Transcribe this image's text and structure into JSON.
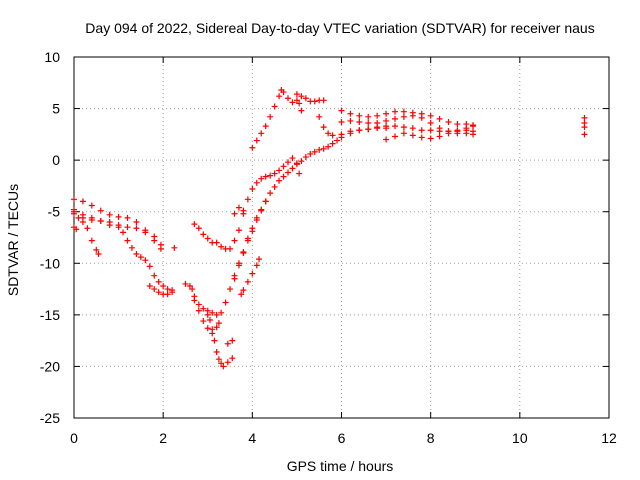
{
  "chart_data": {
    "type": "scatter",
    "title": "Day 094 of 2022, Sidereal Day-to-day VTEC variation (SDTVAR) for receiver naus",
    "xlabel": "GPS time / hours",
    "ylabel": "SDTVAR / TECUs",
    "xlim": [
      0,
      12
    ],
    "ylim": [
      -25,
      10
    ],
    "xticks": [
      0,
      2,
      4,
      6,
      8,
      10,
      12
    ],
    "yticks": [
      -25,
      -20,
      -15,
      -10,
      -5,
      0,
      5,
      10
    ],
    "xtick_labels": [
      "0",
      "2",
      "4",
      "6",
      "8",
      "10",
      "12"
    ],
    "ytick_labels": [
      "-25",
      "-20",
      "-15",
      "-10",
      "-5",
      "0",
      "5",
      "10"
    ],
    "grid": true,
    "marker": "+",
    "color": "#ff0000",
    "series": [
      {
        "points": [
          [
            0.0,
            -5.0
          ],
          [
            0.1,
            -5.6
          ],
          [
            0.2,
            -6.0
          ],
          [
            0.3,
            -6.6
          ],
          [
            0.4,
            -7.8
          ],
          [
            0.5,
            -8.7
          ],
          [
            0.55,
            -9.1
          ],
          [
            0.0,
            -6.5
          ],
          [
            0.05,
            -6.7
          ],
          [
            0.0,
            -4.8
          ],
          [
            0.2,
            -5.3
          ],
          [
            0.4,
            -5.6
          ],
          [
            0.6,
            -5.9
          ],
          [
            0.8,
            -6.3
          ],
          [
            1.0,
            -6.5
          ],
          [
            1.2,
            -6.5
          ],
          [
            1.4,
            -6.6
          ],
          [
            1.6,
            -7.0
          ],
          [
            1.8,
            -7.8
          ],
          [
            1.95,
            -8.6
          ],
          [
            0.0,
            -5.2
          ],
          [
            0.2,
            -5.6
          ],
          [
            0.4,
            -5.8
          ],
          [
            0.6,
            -5.9
          ],
          [
            0.8,
            -6.0
          ],
          [
            1.0,
            -6.3
          ],
          [
            1.1,
            -7.0
          ],
          [
            1.2,
            -7.8
          ],
          [
            1.3,
            -8.5
          ],
          [
            1.4,
            -9.1
          ],
          [
            1.5,
            -9.4
          ],
          [
            1.6,
            -9.7
          ],
          [
            1.7,
            -10.3
          ],
          [
            1.8,
            -11.2
          ],
          [
            1.9,
            -11.8
          ],
          [
            2.0,
            -12.2
          ],
          [
            2.1,
            -12.5
          ],
          [
            2.2,
            -12.6
          ],
          [
            1.7,
            -12.2
          ],
          [
            1.8,
            -12.5
          ],
          [
            1.9,
            -12.8
          ],
          [
            2.0,
            -13.0
          ],
          [
            2.1,
            -13.0
          ],
          [
            2.2,
            -12.8
          ],
          [
            0.0,
            -3.8
          ],
          [
            0.2,
            -4.0
          ],
          [
            0.4,
            -4.4
          ],
          [
            0.6,
            -4.9
          ],
          [
            0.8,
            -5.3
          ],
          [
            1.0,
            -5.5
          ],
          [
            1.2,
            -5.6
          ],
          [
            1.4,
            -6.0
          ],
          [
            1.6,
            -6.8
          ],
          [
            1.8,
            -7.4
          ],
          [
            1.95,
            -8.2
          ],
          [
            2.25,
            -8.5
          ],
          [
            2.5,
            -12.0
          ],
          [
            2.6,
            -12.2
          ],
          [
            2.65,
            -12.5
          ],
          [
            2.7,
            -13.6
          ],
          [
            2.8,
            -14.6
          ],
          [
            2.9,
            -15.6
          ],
          [
            3.0,
            -16.3
          ],
          [
            3.1,
            -16.8
          ],
          [
            3.2,
            -16.2
          ],
          [
            3.25,
            -15.8
          ],
          [
            3.0,
            -15.0
          ],
          [
            3.05,
            -15.5
          ],
          [
            3.1,
            -16.4
          ],
          [
            3.15,
            -17.5
          ],
          [
            3.2,
            -18.6
          ],
          [
            3.25,
            -19.3
          ],
          [
            3.3,
            -19.7
          ],
          [
            3.35,
            -20.0
          ],
          [
            3.45,
            -19.6
          ],
          [
            3.55,
            -19.2
          ],
          [
            2.7,
            -13.2
          ],
          [
            2.8,
            -14.0
          ],
          [
            2.9,
            -14.4
          ],
          [
            3.0,
            -14.6
          ],
          [
            3.1,
            -14.8
          ],
          [
            3.2,
            -15.0
          ],
          [
            3.3,
            -14.8
          ],
          [
            3.4,
            -13.8
          ],
          [
            3.5,
            -12.5
          ],
          [
            3.6,
            -11.2
          ],
          [
            3.7,
            -10.0
          ],
          [
            3.8,
            -8.9
          ],
          [
            3.9,
            -7.8
          ],
          [
            4.0,
            -6.9
          ],
          [
            4.1,
            -5.8
          ],
          [
            4.2,
            -4.9
          ],
          [
            4.3,
            -4.0
          ],
          [
            4.4,
            -3.2
          ],
          [
            4.5,
            -2.6
          ],
          [
            4.6,
            -2.0
          ],
          [
            4.7,
            -1.6
          ],
          [
            4.8,
            -1.2
          ],
          [
            4.9,
            -0.8
          ],
          [
            5.0,
            -0.4
          ],
          [
            5.1,
            -0.1
          ],
          [
            5.2,
            0.3
          ],
          [
            5.3,
            0.6
          ],
          [
            5.4,
            0.8
          ],
          [
            5.5,
            1.0
          ],
          [
            5.6,
            1.1
          ],
          [
            5.7,
            1.3
          ],
          [
            5.8,
            1.6
          ],
          [
            5.9,
            1.9
          ],
          [
            6.0,
            2.2
          ],
          [
            6.2,
            2.6
          ],
          [
            6.4,
            2.9
          ],
          [
            6.6,
            3.0
          ],
          [
            6.8,
            3.1
          ],
          [
            7.0,
            3.1
          ],
          [
            2.7,
            -6.2
          ],
          [
            2.8,
            -6.6
          ],
          [
            2.9,
            -7.2
          ],
          [
            3.0,
            -7.6
          ],
          [
            3.1,
            -8.0
          ],
          [
            3.2,
            -8.0
          ],
          [
            3.3,
            -8.4
          ],
          [
            3.4,
            -8.6
          ],
          [
            3.5,
            -8.6
          ],
          [
            3.6,
            -7.8
          ],
          [
            3.7,
            -6.8
          ],
          [
            3.8,
            -5.2
          ],
          [
            3.9,
            -3.8
          ],
          [
            4.0,
            -2.8
          ],
          [
            4.1,
            -2.2
          ],
          [
            4.2,
            -1.8
          ],
          [
            4.3,
            -1.6
          ],
          [
            4.4,
            -1.5
          ],
          [
            4.5,
            -1.3
          ],
          [
            4.6,
            -1.0
          ],
          [
            4.7,
            -0.6
          ],
          [
            4.8,
            -0.2
          ],
          [
            4.9,
            0.2
          ],
          [
            5.0,
            -0.3
          ],
          [
            5.05,
            -1.3
          ],
          [
            3.45,
            -17.8
          ],
          [
            3.55,
            -17.5
          ],
          [
            3.6,
            -11.5
          ],
          [
            3.7,
            -10.2
          ],
          [
            3.8,
            -9.0
          ],
          [
            3.9,
            -7.6
          ],
          [
            4.0,
            -6.6
          ],
          [
            4.1,
            -5.6
          ],
          [
            4.2,
            -4.8
          ],
          [
            4.3,
            -4.0
          ],
          [
            3.6,
            -5.2
          ],
          [
            3.7,
            -4.6
          ],
          [
            3.8,
            -4.9
          ],
          [
            3.75,
            -13.0
          ],
          [
            3.8,
            -12.6
          ],
          [
            3.9,
            -11.8
          ],
          [
            4.0,
            -11.0
          ],
          [
            4.1,
            -10.2
          ],
          [
            4.15,
            -9.6
          ],
          [
            4.0,
            1.2
          ],
          [
            4.1,
            1.9
          ],
          [
            4.2,
            2.6
          ],
          [
            4.3,
            3.3
          ],
          [
            4.4,
            4.2
          ],
          [
            4.5,
            5.2
          ],
          [
            4.6,
            6.2
          ],
          [
            4.65,
            6.8
          ],
          [
            4.7,
            6.6
          ],
          [
            4.8,
            6.0
          ],
          [
            4.9,
            5.6
          ],
          [
            5.0,
            5.8
          ],
          [
            5.1,
            6.2
          ],
          [
            5.2,
            6.0
          ],
          [
            5.3,
            5.7
          ],
          [
            5.4,
            5.7
          ],
          [
            5.5,
            5.8
          ],
          [
            5.6,
            5.8
          ],
          [
            5.0,
            6.4
          ],
          [
            5.05,
            5.5
          ],
          [
            5.1,
            4.8
          ],
          [
            5.5,
            4.2
          ],
          [
            5.6,
            3.2
          ],
          [
            5.7,
            2.6
          ],
          [
            5.8,
            2.4
          ],
          [
            6.0,
            2.5
          ],
          [
            6.2,
            2.8
          ],
          [
            6.4,
            2.9
          ],
          [
            6.6,
            3.0
          ],
          [
            6.8,
            3.2
          ],
          [
            7.0,
            3.3
          ],
          [
            7.2,
            3.3
          ],
          [
            7.4,
            3.2
          ],
          [
            7.6,
            3.1
          ],
          [
            7.8,
            2.9
          ],
          [
            8.0,
            2.9
          ],
          [
            8.2,
            2.8
          ],
          [
            8.4,
            2.8
          ],
          [
            8.6,
            2.8
          ],
          [
            8.8,
            2.9
          ],
          [
            8.95,
            2.8
          ],
          [
            6.0,
            3.7
          ],
          [
            6.2,
            3.8
          ],
          [
            6.4,
            3.7
          ],
          [
            6.6,
            3.6
          ],
          [
            6.8,
            3.6
          ],
          [
            7.0,
            3.8
          ],
          [
            7.2,
            4.0
          ],
          [
            7.4,
            4.2
          ],
          [
            7.6,
            4.3
          ],
          [
            7.8,
            4.1
          ],
          [
            8.0,
            3.6
          ],
          [
            8.2,
            3.1
          ],
          [
            8.4,
            2.8
          ],
          [
            8.6,
            2.6
          ],
          [
            8.8,
            2.6
          ],
          [
            8.95,
            2.5
          ],
          [
            6.0,
            4.8
          ],
          [
            6.2,
            4.5
          ],
          [
            6.4,
            4.3
          ],
          [
            6.6,
            4.2
          ],
          [
            6.8,
            4.3
          ],
          [
            7.0,
            4.5
          ],
          [
            7.2,
            4.7
          ],
          [
            7.4,
            4.7
          ],
          [
            7.6,
            4.6
          ],
          [
            7.8,
            4.5
          ],
          [
            8.0,
            4.3
          ],
          [
            8.2,
            4.0
          ],
          [
            8.4,
            3.7
          ],
          [
            8.6,
            3.5
          ],
          [
            8.8,
            3.5
          ],
          [
            8.95,
            3.4
          ],
          [
            7.0,
            2.0
          ],
          [
            7.2,
            2.3
          ],
          [
            7.4,
            2.6
          ],
          [
            7.6,
            2.4
          ],
          [
            7.8,
            2.2
          ],
          [
            8.0,
            2.1
          ],
          [
            8.2,
            2.3
          ],
          [
            8.4,
            2.6
          ],
          [
            8.6,
            2.9
          ],
          [
            8.8,
            3.1
          ],
          [
            8.95,
            3.3
          ],
          [
            11.45,
            4.1
          ],
          [
            11.45,
            3.6
          ],
          [
            11.45,
            3.2
          ],
          [
            11.45,
            2.5
          ]
        ]
      }
    ]
  }
}
